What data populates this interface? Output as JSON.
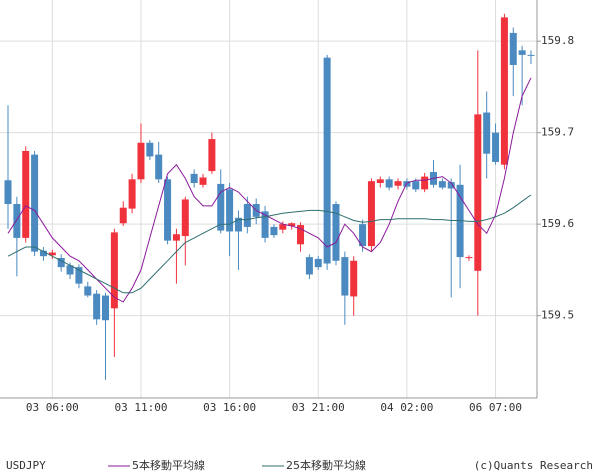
{
  "chart_data": {
    "type": "candlestick",
    "symbol": "USDJPY",
    "credit": "(c)Quants Research",
    "categories": [
      null,
      null,
      null,
      null,
      null,
      "03 06:00",
      null,
      null,
      null,
      null,
      null,
      null,
      null,
      null,
      null,
      "03 11:00",
      null,
      null,
      null,
      null,
      null,
      null,
      null,
      null,
      null,
      "03 16:00",
      null,
      null,
      null,
      null,
      null,
      null,
      null,
      null,
      null,
      "03 21:00",
      null,
      null,
      null,
      null,
      null,
      null,
      null,
      null,
      null,
      "04 02:00",
      null,
      null,
      null,
      null,
      null,
      null,
      null,
      null,
      null,
      "06 07:00",
      null,
      null,
      null,
      null
    ],
    "open": [
      159.648,
      159.622,
      159.585,
      159.676,
      159.571,
      159.566,
      159.563,
      159.555,
      159.553,
      159.532,
      159.524,
      159.522,
      159.508,
      159.601,
      159.617,
      159.649,
      159.689,
      159.676,
      159.649,
      159.582,
      159.587,
      159.655,
      159.643,
      159.658,
      159.644,
      159.638,
      159.607,
      159.622,
      159.622,
      159.614,
      159.597,
      159.594,
      159.598,
      159.578,
      159.564,
      159.562,
      159.782,
      159.622,
      159.564,
      159.521,
      159.6,
      159.576,
      159.645,
      159.649,
      159.642,
      159.647,
      159.647,
      159.638,
      159.657,
      159.647,
      159.646,
      159.643,
      159.563,
      159.549,
      159.722,
      159.7,
      159.665,
      159.809,
      159.79,
      159.785
    ],
    "high": [
      159.73,
      159.63,
      159.685,
      159.68,
      159.575,
      159.572,
      159.567,
      159.558,
      159.556,
      159.537,
      159.528,
      159.525,
      159.595,
      159.625,
      159.655,
      159.71,
      159.692,
      159.69,
      159.652,
      159.595,
      159.63,
      159.66,
      159.655,
      159.7,
      159.66,
      159.645,
      159.615,
      159.63,
      159.628,
      159.62,
      159.6,
      159.603,
      159.602,
      159.602,
      159.567,
      159.565,
      159.785,
      159.625,
      159.57,
      159.565,
      159.605,
      159.65,
      159.652,
      159.652,
      159.65,
      159.65,
      159.65,
      159.656,
      159.67,
      159.65,
      159.65,
      159.665,
      159.566,
      159.79,
      159.745,
      159.71,
      159.83,
      159.815,
      159.795,
      159.79
    ],
    "low": [
      159.595,
      159.543,
      159.58,
      159.565,
      159.56,
      159.562,
      159.548,
      159.54,
      159.53,
      159.52,
      159.49,
      159.43,
      159.455,
      159.598,
      159.612,
      159.645,
      159.67,
      159.645,
      159.578,
      159.535,
      159.555,
      159.64,
      159.64,
      159.655,
      159.59,
      159.565,
      159.55,
      159.59,
      159.6,
      159.58,
      159.585,
      159.59,
      159.594,
      159.57,
      159.54,
      159.55,
      159.55,
      159.555,
      159.49,
      159.5,
      159.57,
      159.57,
      159.64,
      159.637,
      159.638,
      159.638,
      159.635,
      159.635,
      159.64,
      159.638,
      159.52,
      159.53,
      159.56,
      159.5,
      159.65,
      159.665,
      159.66,
      159.74,
      159.73,
      159.775
    ],
    "close": [
      159.622,
      159.585,
      159.68,
      159.57,
      159.565,
      159.569,
      159.553,
      159.545,
      159.535,
      159.522,
      159.496,
      159.495,
      159.591,
      159.618,
      159.649,
      159.689,
      159.674,
      159.649,
      159.582,
      159.589,
      159.627,
      159.645,
      159.651,
      159.693,
      159.593,
      159.592,
      159.592,
      159.597,
      159.608,
      159.585,
      159.588,
      159.6,
      159.601,
      159.599,
      159.545,
      159.553,
      159.557,
      159.56,
      159.522,
      159.56,
      159.576,
      159.647,
      159.649,
      159.64,
      159.647,
      159.641,
      159.638,
      159.652,
      159.643,
      159.64,
      159.639,
      159.564,
      159.564,
      159.72,
      159.677,
      159.668,
      159.826,
      159.774,
      159.785,
      159.784
    ],
    "up_color": "#f0323c",
    "down_color": "#4a8ac0",
    "series": [
      {
        "name": "5本移動平均線",
        "color": "#8b1a9b",
        "values": [
          159.59,
          159.605,
          159.62,
          159.615,
          159.6,
          159.585,
          159.575,
          159.565,
          159.56,
          159.55,
          159.54,
          159.53,
          159.52,
          159.515,
          159.53,
          159.55,
          159.585,
          159.62,
          159.655,
          159.665,
          159.65,
          159.63,
          159.62,
          159.62,
          159.635,
          159.64,
          159.635,
          159.625,
          159.615,
          159.61,
          159.605,
          159.6,
          159.598,
          159.595,
          159.59,
          159.585,
          159.575,
          159.58,
          159.6,
          159.59,
          159.575,
          159.57,
          159.58,
          159.6,
          159.625,
          159.645,
          159.648,
          159.648,
          159.65,
          159.652,
          159.645,
          159.63,
          159.615,
          159.6,
          159.59,
          159.61,
          159.65,
          159.7,
          159.74,
          159.76
        ]
      },
      {
        "name": "25本移動平均線",
        "color": "#2f6f6f",
        "values": [
          159.565,
          159.57,
          159.575,
          159.575,
          159.57,
          159.565,
          159.56,
          159.555,
          159.55,
          159.545,
          159.54,
          159.535,
          159.53,
          159.525,
          159.525,
          159.53,
          159.54,
          159.55,
          159.56,
          159.57,
          159.58,
          159.585,
          159.59,
          159.595,
          159.6,
          159.6,
          159.605,
          159.605,
          159.607,
          159.608,
          159.61,
          159.612,
          159.613,
          159.614,
          159.615,
          159.615,
          159.614,
          159.612,
          159.608,
          159.604,
          159.602,
          159.603,
          159.605,
          159.605,
          159.606,
          159.606,
          159.606,
          159.606,
          159.605,
          159.605,
          159.604,
          159.604,
          159.603,
          159.603,
          159.605,
          159.608,
          159.612,
          159.618,
          159.625,
          159.632
        ]
      }
    ],
    "ylim": [
      159.41,
      159.845
    ],
    "yticks": [
      159.5,
      159.6,
      159.7,
      159.8
    ],
    "grid": true
  }
}
